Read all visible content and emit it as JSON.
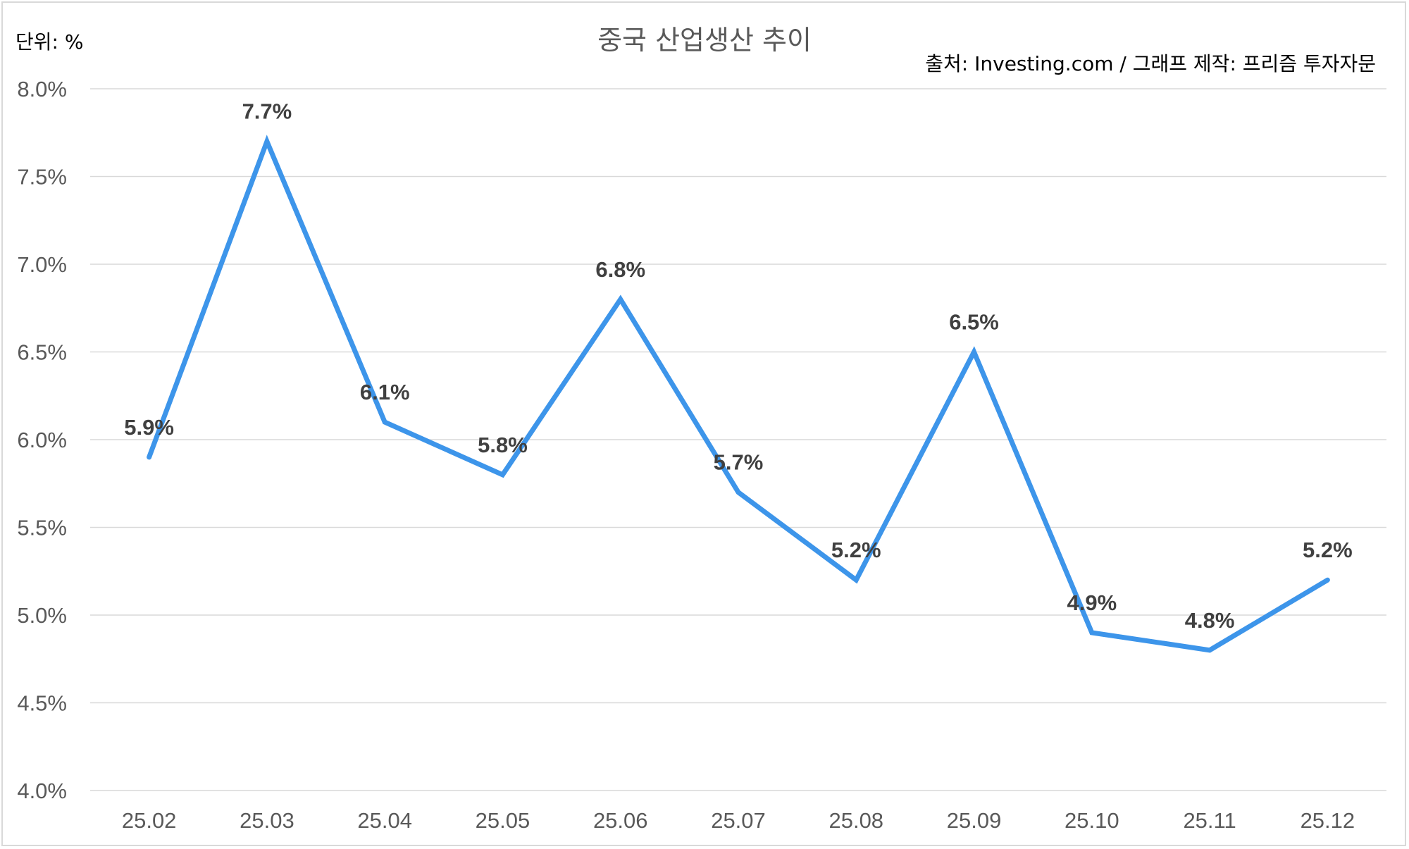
{
  "chart_data": {
    "type": "line",
    "title": "중국 산업생산 추이",
    "unit_label": "단위: %",
    "source_label": "출처: Investing.com / 그래프 제작: 프리즘 투자자문",
    "categories": [
      "25.02",
      "25.03",
      "25.04",
      "25.05",
      "25.06",
      "25.07",
      "25.08",
      "25.09",
      "25.10",
      "25.11",
      "25.12"
    ],
    "series": [
      {
        "values": [
          5.9,
          7.7,
          6.1,
          5.8,
          6.8,
          5.7,
          5.2,
          6.5,
          4.9,
          4.8,
          5.2
        ],
        "data_labels": [
          "5.9%",
          "7.7%",
          "6.1%",
          "5.8%",
          "6.8%",
          "5.7%",
          "5.2%",
          "6.5%",
          "4.9%",
          "4.8%",
          "5.2%"
        ]
      }
    ],
    "y_ticks": [
      4.0,
      4.5,
      5.0,
      5.5,
      6.0,
      6.5,
      7.0,
      7.5,
      8.0
    ],
    "y_tick_labels": [
      "4.0%",
      "4.5%",
      "5.0%",
      "5.5%",
      "6.0%",
      "6.5%",
      "7.0%",
      "7.5%",
      "8.0%"
    ],
    "ylim": [
      4.0,
      8.0
    ],
    "grid": true,
    "legend": "none",
    "line_color": "#3d95ea"
  }
}
